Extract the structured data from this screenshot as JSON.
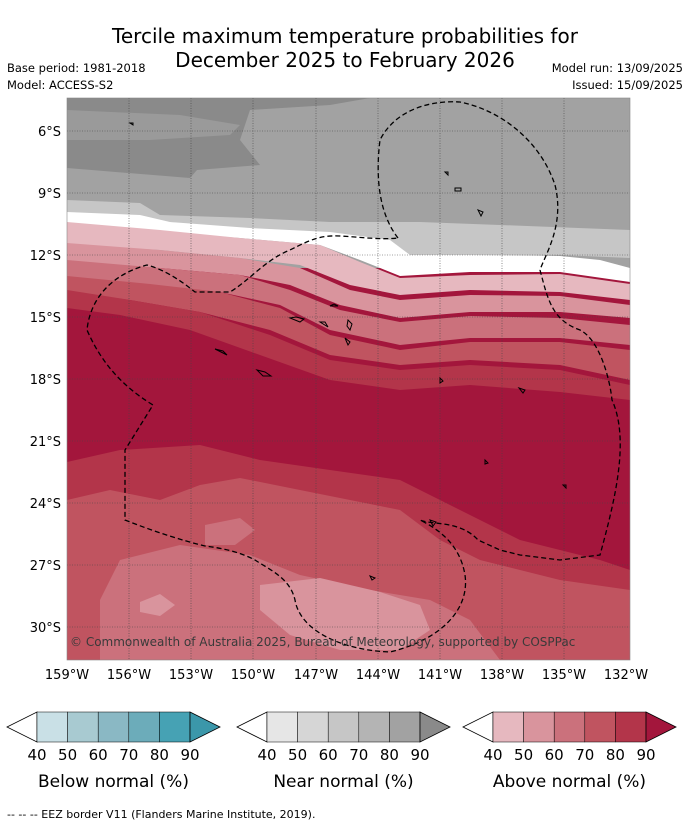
{
  "header": {
    "title_line1": "Tercile maximum temperature probabilities for",
    "title_line2": "December 2025 to February 2026",
    "base_period": "Base period: 1981-2018",
    "model": "Model: ACCESS-S2",
    "model_run": "Model run: 13/09/2025",
    "issued": "Issued: 15/09/2025"
  },
  "map": {
    "lat_labels": [
      "6°S",
      "9°S",
      "12°S",
      "15°S",
      "18°S",
      "21°S",
      "24°S",
      "27°S",
      "30°S"
    ],
    "lon_labels": [
      "159°W",
      "156°W",
      "153°W",
      "150°W",
      "147°W",
      "144°W",
      "141°W",
      "138°W",
      "135°W",
      "132°W"
    ],
    "copyright": "© Commonwealth of Australia 2025, Bureau of Meteorology, supported by COSPPac"
  },
  "legend": {
    "tick_values": [
      "40",
      "50",
      "60",
      "70",
      "80",
      "90"
    ],
    "below": {
      "label": "Below normal (%)",
      "colors": [
        "#c9e0e6",
        "#a8cad1",
        "#8ab8c4",
        "#6cacba",
        "#46a2b4",
        "#3b97aa"
      ]
    },
    "near": {
      "label": "Near normal (%)",
      "colors": [
        "#e6e6e6",
        "#d6d6d6",
        "#c6c6c6",
        "#b4b4b4",
        "#a2a2a2",
        "#8a8a8a"
      ]
    },
    "above": {
      "label": "Above normal (%)",
      "colors": [
        "#e6b8bf",
        "#d9949d",
        "#cb717c",
        "#c05460",
        "#b3354a",
        "#a3163c"
      ]
    }
  },
  "footer": {
    "eez_note": "--  --  -- EEZ border V11 (Flanders Marine Institute, 2019)."
  }
}
